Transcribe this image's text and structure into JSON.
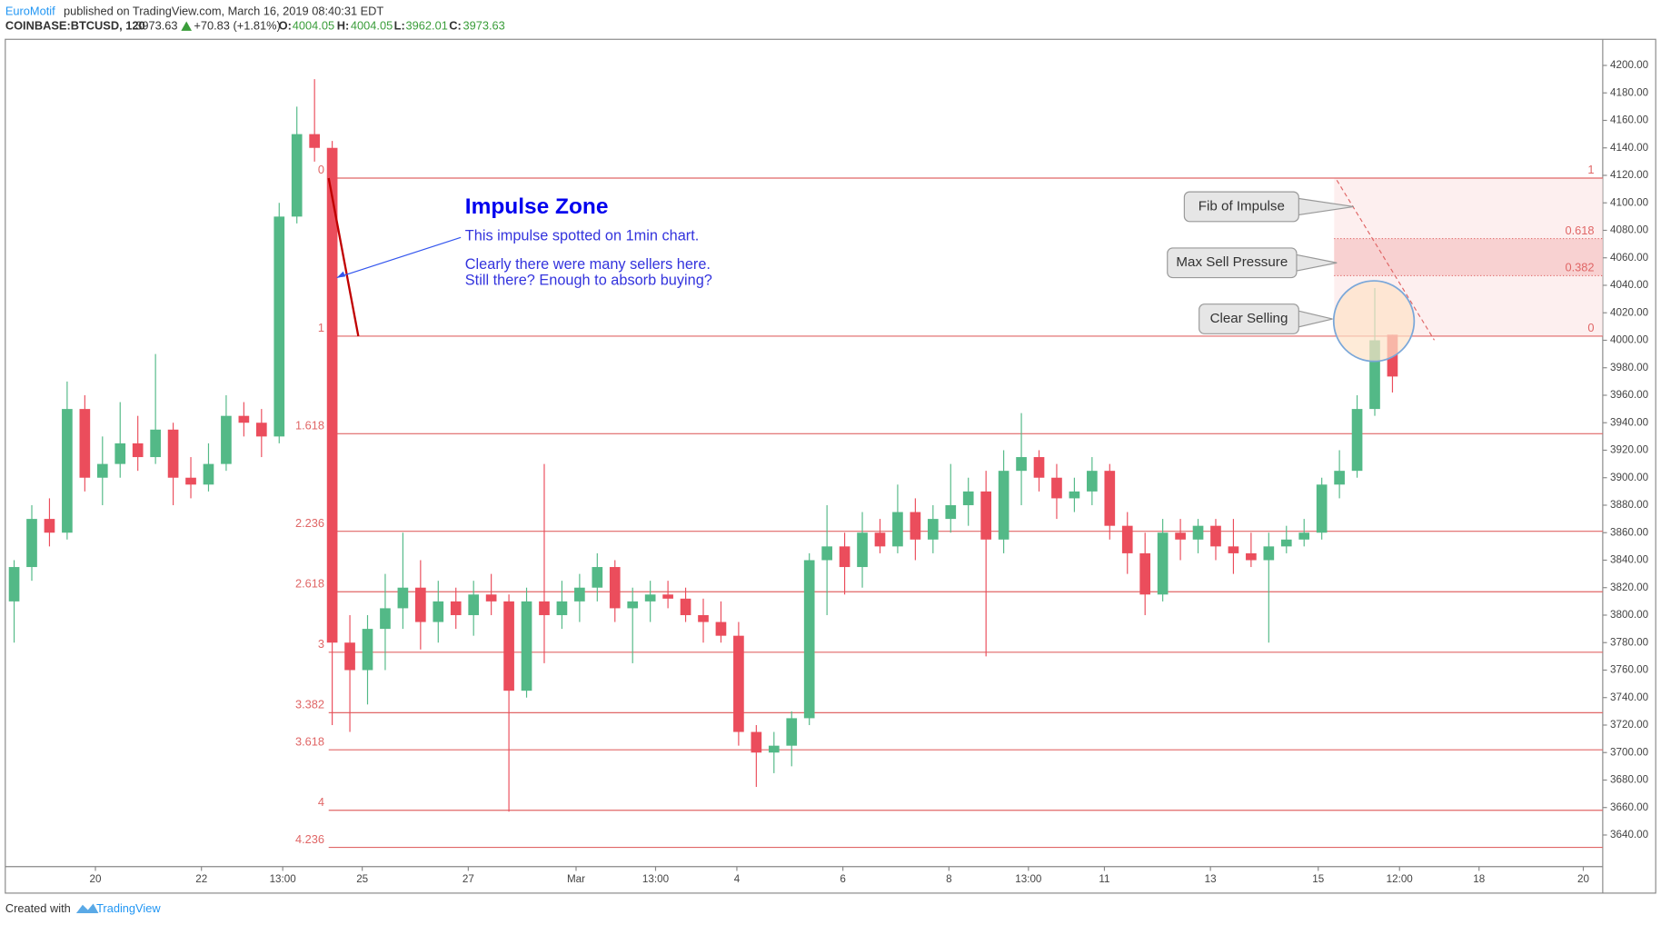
{
  "header": {
    "author": "EuroMotif",
    "published": "published on TradingView.com, March 16, 2019 08:40:31 EDT",
    "symbol": "COINBASE:BTCUSD, 120",
    "last": 3973.63,
    "change": "+70.83 (+1.81%)",
    "ohlc_labels": [
      "O:",
      "H:",
      "L:",
      "C:"
    ],
    "open": 4004.05,
    "high": 4004.05,
    "low": 3962.01,
    "close": 3973.63
  },
  "footer": {
    "created": "Created with",
    "brand": "TradingView"
  },
  "chart_data": {
    "type": "candlestick",
    "up_color": "#53b987",
    "down_color": "#eb4d5c",
    "xlim": [
      -0.5,
      89.9
    ],
    "xticks": [
      {
        "value": 4.6,
        "label": "20"
      },
      {
        "value": 10.6,
        "label": "22"
      },
      {
        "value": 15.2,
        "label": "13:00"
      },
      {
        "value": 19.7,
        "label": "25"
      },
      {
        "value": 25.7,
        "label": "27"
      },
      {
        "value": 31.8,
        "label": "Mar"
      },
      {
        "value": 36.3,
        "label": "13:00"
      },
      {
        "value": 40.9,
        "label": "4"
      },
      {
        "value": 46.9,
        "label": "6"
      },
      {
        "value": 52.9,
        "label": "8"
      },
      {
        "value": 57.4,
        "label": "13:00"
      },
      {
        "value": 61.7,
        "label": "11"
      },
      {
        "value": 67.7,
        "label": "13"
      },
      {
        "value": 73.8,
        "label": "15"
      },
      {
        "value": 78.4,
        "label": "12:00"
      },
      {
        "value": 82.9,
        "label": "18"
      },
      {
        "value": 88.8,
        "label": "20"
      }
    ],
    "ylim": [
      3617,
      4219
    ],
    "yticks": [
      {
        "value": 3640,
        "label": "3640.00"
      },
      {
        "value": 3660,
        "label": "3660.00"
      },
      {
        "value": 3680,
        "label": "3680.00"
      },
      {
        "value": 3700,
        "label": "3700.00"
      },
      {
        "value": 3720,
        "label": "3720.00"
      },
      {
        "value": 3740,
        "label": "3740.00"
      },
      {
        "value": 3760,
        "label": "3760.00"
      },
      {
        "value": 3780,
        "label": "3780.00"
      },
      {
        "value": 3800,
        "label": "3800.00"
      },
      {
        "value": 3820,
        "label": "3820.00"
      },
      {
        "value": 3840,
        "label": "3840.00"
      },
      {
        "value": 3860,
        "label": "3860.00"
      },
      {
        "value": 3880,
        "label": "3880.00"
      },
      {
        "value": 3900,
        "label": "3900.00"
      },
      {
        "value": 3920,
        "label": "3920.00"
      },
      {
        "value": 3940,
        "label": "3940.00"
      },
      {
        "value": 3960,
        "label": "3960.00"
      },
      {
        "value": 3980,
        "label": "3980.00"
      },
      {
        "value": 4000,
        "label": "4000.00"
      },
      {
        "value": 4020,
        "label": "4020.00"
      },
      {
        "value": 4040,
        "label": "4040.00"
      },
      {
        "value": 4060,
        "label": "4060.00"
      },
      {
        "value": 4080,
        "label": "4080.00"
      },
      {
        "value": 4100,
        "label": "4100.00"
      },
      {
        "value": 4120,
        "label": "4120.00"
      },
      {
        "value": 4140,
        "label": "4140.00"
      },
      {
        "value": 4160,
        "label": "4160.00"
      },
      {
        "value": 4180,
        "label": "4180.00"
      },
      {
        "value": 4200,
        "label": "4200.00"
      }
    ],
    "open": [
      3810,
      3835,
      3870,
      3860,
      3950,
      3900,
      3910,
      3925,
      3915,
      3935,
      3900,
      3895,
      3910,
      3945,
      3940,
      3930,
      4090,
      4150,
      4140,
      3780,
      3760,
      3790,
      3805,
      3820,
      3795,
      3810,
      3800,
      3815,
      3810,
      3745,
      3810,
      3800,
      3810,
      3820,
      3835,
      3805,
      3810,
      3815,
      3812,
      3800,
      3795,
      3785,
      3715,
      3700,
      3705,
      3725,
      3840,
      3850,
      3835,
      3860,
      3850,
      3875,
      3855,
      3870,
      3880,
      3890,
      3855,
      3905,
      3915,
      3900,
      3885,
      3890,
      3905,
      3865,
      3845,
      3815,
      3860,
      3855,
      3865,
      3850,
      3845,
      3840,
      3850,
      3855,
      3860,
      3895,
      3905,
      3950,
      4004.05
    ],
    "high": [
      3840,
      3880,
      3885,
      3970,
      3960,
      3930,
      3955,
      3945,
      3990,
      3940,
      3915,
      3925,
      3960,
      3955,
      3950,
      4100,
      4170,
      4190,
      4145,
      3800,
      3800,
      3830,
      3860,
      3840,
      3825,
      3820,
      3825,
      3830,
      3815,
      3820,
      3910,
      3825,
      3830,
      3845,
      3840,
      3820,
      3825,
      3825,
      3820,
      3812,
      3810,
      3795,
      3720,
      3715,
      3730,
      3845,
      3880,
      3860,
      3875,
      3870,
      3895,
      3885,
      3880,
      3910,
      3900,
      3905,
      3920,
      3947,
      3920,
      3910,
      3900,
      3915,
      3910,
      3875,
      3860,
      3870,
      3870,
      3870,
      3870,
      3870,
      3860,
      3860,
      3865,
      3870,
      3900,
      3920,
      3960,
      4038,
      4004.05
    ],
    "low": [
      3780,
      3825,
      3850,
      3855,
      3890,
      3880,
      3900,
      3905,
      3910,
      3880,
      3885,
      3890,
      3905,
      3930,
      3915,
      3925,
      4085,
      4130,
      3720,
      3715,
      3735,
      3760,
      3790,
      3775,
      3780,
      3790,
      3785,
      3800,
      3657,
      3740,
      3765,
      3790,
      3795,
      3810,
      3795,
      3765,
      3795,
      3805,
      3795,
      3780,
      3780,
      3705,
      3675,
      3685,
      3690,
      3720,
      3800,
      3815,
      3820,
      3845,
      3845,
      3840,
      3845,
      3860,
      3865,
      3770,
      3845,
      3880,
      3890,
      3870,
      3875,
      3880,
      3855,
      3830,
      3800,
      3810,
      3840,
      3845,
      3840,
      3830,
      3835,
      3780,
      3845,
      3850,
      3855,
      3885,
      3900,
      3945,
      3962.01
    ],
    "close": [
      3835,
      3870,
      3860,
      3950,
      3900,
      3910,
      3925,
      3915,
      3935,
      3900,
      3895,
      3910,
      3945,
      3940,
      3930,
      4090,
      4150,
      4140,
      3780,
      3760,
      3790,
      3805,
      3820,
      3795,
      3810,
      3800,
      3815,
      3810,
      3745,
      3810,
      3800,
      3810,
      3820,
      3835,
      3805,
      3810,
      3815,
      3812,
      3800,
      3795,
      3785,
      3715,
      3700,
      3705,
      3725,
      3840,
      3850,
      3835,
      3860,
      3850,
      3875,
      3855,
      3870,
      3880,
      3890,
      3855,
      3905,
      3915,
      3900,
      3885,
      3890,
      3905,
      3865,
      3845,
      3815,
      3860,
      3855,
      3865,
      3850,
      3845,
      3840,
      3850,
      3855,
      3860,
      3895,
      3905,
      3950,
      4000,
      3973.63
    ],
    "fib_left": {
      "anchor_x": 17.8,
      "levels": [
        0,
        1,
        1.618,
        2.236,
        2.618,
        3,
        3.382,
        3.618,
        4,
        4.236
      ],
      "prices": [
        4118,
        4003,
        3932,
        3861,
        3817,
        3773,
        3729,
        3702,
        3658,
        3631
      ]
    },
    "fib_right": {
      "anchor_x": 74.7,
      "levels": [
        1,
        0.618,
        0.382,
        0
      ],
      "prices": [
        4118,
        4074,
        4047,
        4003
      ]
    },
    "annotations": {
      "title": "Impulse Zone",
      "line1": "This impulse spotted on 1min chart.",
      "line2": "Clearly there were many sellers here.",
      "line3": "Still there?  Enough to absorb buying?"
    },
    "callouts": [
      "Fib of Impulse",
      "Max Sell Pressure",
      "Clear Selling"
    ]
  }
}
